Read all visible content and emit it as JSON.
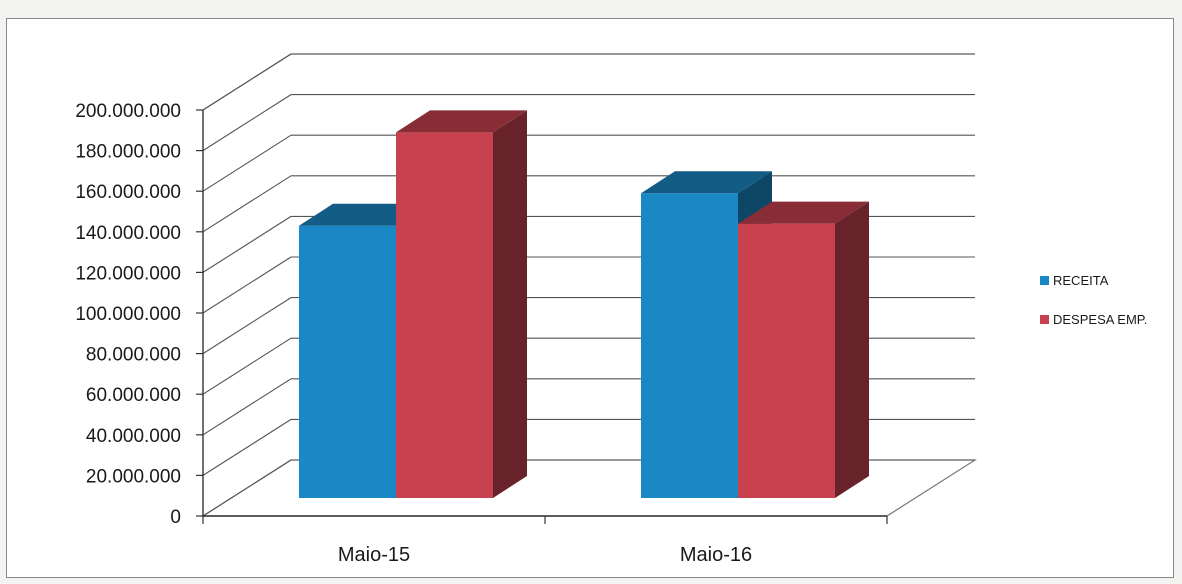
{
  "chart_data": {
    "type": "bar",
    "style": "3d-clustered-column",
    "categories": [
      "Maio-15",
      "Maio-16"
    ],
    "series": [
      {
        "name": "RECEITA",
        "color": "#1a88c4",
        "values": [
          143000000,
          159000000
        ]
      },
      {
        "name": "DESPESA EMP.",
        "color": "#c8414f",
        "values": [
          189000000,
          144000000
        ]
      }
    ],
    "yticks": [
      0,
      20000000,
      40000000,
      60000000,
      80000000,
      100000000,
      120000000,
      140000000,
      160000000,
      180000000,
      200000000
    ],
    "ytick_labels": [
      "0",
      "20.000.000",
      "40.000.000",
      "60.000.000",
      "80.000.000",
      "100.000.000",
      "120.000.000",
      "140.000.000",
      "160.000.000",
      "180.000.000",
      "200.000.000"
    ],
    "ylim": [
      0,
      200000000
    ],
    "grid": true,
    "legend_position": "right",
    "title": "",
    "xlabel": "",
    "ylabel": ""
  }
}
